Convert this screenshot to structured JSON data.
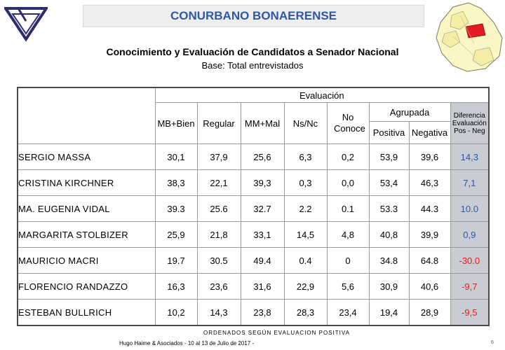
{
  "header": {
    "title": "CONURBANO BONAERENSE",
    "subtitle": "Conocimiento y Evaluación de Candidatos a Senador Nacional",
    "base": "Base: Total entrevistados"
  },
  "table": {
    "evaluacion_header": "Evaluación",
    "columns": {
      "mb_bien": "MB+Bien",
      "regular": "Regular",
      "mm_mal": "MM+Mal",
      "ns_nc": "Ns/Nc",
      "no_conoce": "No Conoce",
      "agrupada": "Agrupada",
      "positiva": "Positiva",
      "negativa": "Negativa",
      "diferencia": "Diferencia Evaluación Pos - Neg"
    },
    "rows": [
      {
        "name": "SERGIO MASSA",
        "mb_bien": "30,1",
        "regular": "37,9",
        "mm_mal": "25,6",
        "ns_nc": "6,3",
        "no_conoce": "0,2",
        "positiva": "53,9",
        "negativa": "39,6",
        "diferencia": "14,3"
      },
      {
        "name": "CRISTINA KIRCHNER",
        "mb_bien": "38,3",
        "regular": "22,1",
        "mm_mal": "39,3",
        "ns_nc": "0,3",
        "no_conoce": "0,0",
        "positiva": "53,4",
        "negativa": "46,3",
        "diferencia": "7,1"
      },
      {
        "name": "MA. EUGENIA VIDAL",
        "mb_bien": "39.3",
        "regular": "25.6",
        "mm_mal": "32.7",
        "ns_nc": "2.2",
        "no_conoce": "0.1",
        "positiva": "53.3",
        "negativa": "44.3",
        "diferencia": "10.0"
      },
      {
        "name": "MARGARITA STOLBIZER",
        "mb_bien": "25,9",
        "regular": "21,8",
        "mm_mal": "33,1",
        "ns_nc": "14,5",
        "no_conoce": "4,8",
        "positiva": "40,8",
        "negativa": "39,9",
        "diferencia": "0,9"
      },
      {
        "name": "MAURICIO MACRI",
        "mb_bien": "19.7",
        "regular": "30.5",
        "mm_mal": "49.4",
        "ns_nc": "0.4",
        "no_conoce": "0",
        "positiva": "34.8",
        "negativa": "64.8",
        "diferencia": "-30.0"
      },
      {
        "name": "FLORENCIO RANDAZZO",
        "mb_bien": "16,3",
        "regular": "23,6",
        "mm_mal": "31,6",
        "ns_nc": "22,9",
        "no_conoce": "5,6",
        "positiva": "30,9",
        "negativa": "40,6",
        "diferencia": "-9,7"
      },
      {
        "name": "ESTEBAN BULLRICH",
        "mb_bien": "10,2",
        "regular": "14,3",
        "mm_mal": "23,8",
        "ns_nc": "28,3",
        "no_conoce": "23,4",
        "positiva": "19,4",
        "negativa": "28,9",
        "diferencia": "-9,5"
      }
    ]
  },
  "footer": {
    "order_note": "ORDENADOS SEGÚN EVALUACION POSITIVA",
    "source": "Hugo Haime & Asociados    -    10 al 13 de Julio de 2017    -",
    "page_number": "6"
  },
  "colors": {
    "title": "#2f57a8",
    "positive_diff": "#2f57a8",
    "negative_diff": "#e0201b",
    "diff_column_bg": "#c9ccd3"
  },
  "icons": {
    "logo": "triangle-logo-icon",
    "map": "conurbano-map-icon"
  }
}
